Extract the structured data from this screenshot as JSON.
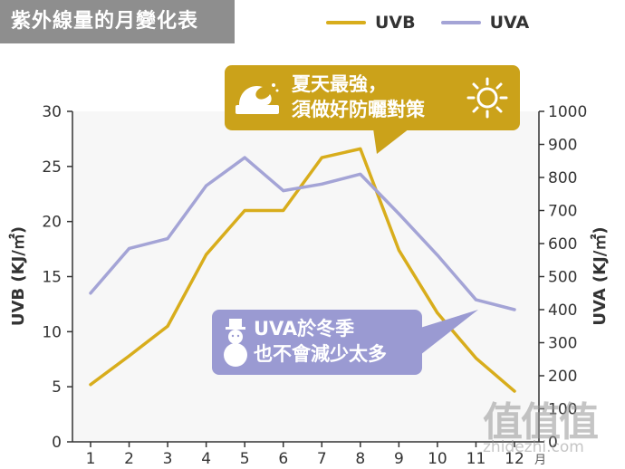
{
  "header": {
    "title": "紫外線量的月變化表"
  },
  "colors": {
    "uvb": "#d8ad1c",
    "uva": "#a4a4d6",
    "summer_box": "#cba21a",
    "winter_box": "#9a9ad2"
  },
  "callouts": {
    "summer": {
      "line1": "夏天最強，",
      "line2": "須做好防曬對策",
      "left_icon": "wave-icon",
      "right_icon": "sun-icon"
    },
    "winter": {
      "line1": "UVA於冬季",
      "line2": "也不會減少太多",
      "icon": "snowman-icon"
    }
  },
  "watermark": {
    "logo": "值值值",
    "url": "zhidezhi.com"
  },
  "chart_data": {
    "type": "line",
    "title": "紫外線量的月變化表",
    "xlabel": "月",
    "ylabel": "UVB (KJ/㎡)",
    "y2label": "UVA (KJ/㎡)",
    "x": [
      1,
      2,
      3,
      4,
      5,
      6,
      7,
      8,
      9,
      10,
      11,
      12
    ],
    "x_tick_labels": [
      "1",
      "2",
      "3",
      "4",
      "5",
      "6",
      "7",
      "8",
      "9",
      "10",
      "11",
      "12"
    ],
    "ylim": [
      0,
      30
    ],
    "y2lim": [
      0,
      1000
    ],
    "y_ticks": [
      0,
      5,
      10,
      15,
      20,
      25,
      30
    ],
    "y2_ticks": [
      0,
      100,
      200,
      300,
      400,
      500,
      600,
      700,
      800,
      900,
      1000
    ],
    "grid": false,
    "legend_position": "top-right",
    "series": [
      {
        "name": "UVB",
        "axis": "left",
        "values": [
          5.2,
          7.8,
          10.5,
          17.0,
          21.0,
          21.0,
          25.8,
          26.6,
          17.4,
          11.7,
          7.6,
          4.6
        ]
      },
      {
        "name": "UVA",
        "axis": "right",
        "values": [
          450,
          585,
          615,
          775,
          860,
          760,
          780,
          810,
          690,
          565,
          430,
          400
        ]
      }
    ]
  }
}
